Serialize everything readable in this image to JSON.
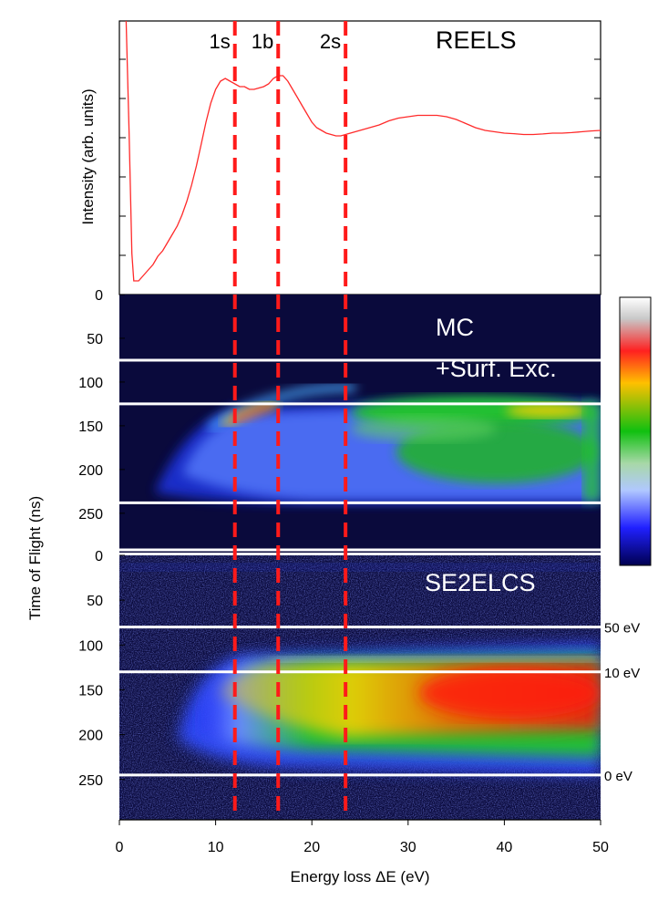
{
  "figure": {
    "x_axis_label": "Energy loss ΔE (eV)",
    "y_axis_label_top": "Intensity (arb. units)",
    "y_axis_label_bottom": "Time of Flight (ns)"
  },
  "chart_data": [
    {
      "type": "line",
      "title": "REELS",
      "xlabel": "Energy loss ΔE (eV)",
      "ylabel": "Intensity (arb. units)",
      "xlim": [
        0,
        50
      ],
      "ylim": [
        0,
        1
      ],
      "x_ticks": [
        "0",
        "10",
        "20",
        "30",
        "40",
        "50"
      ],
      "series": [
        {
          "name": "REELS",
          "color": "#ff2a2a",
          "x": [
            0.7,
            1.0,
            1.3,
            1.5,
            2,
            2.5,
            3,
            3.5,
            4,
            4.5,
            5,
            5.5,
            6,
            6.5,
            7,
            7.5,
            8,
            8.5,
            9,
            9.5,
            10,
            10.5,
            11,
            11.5,
            12,
            12.5,
            13,
            13.5,
            14,
            14.5,
            15,
            15.5,
            16,
            16.5,
            17,
            17.5,
            18,
            18.5,
            19,
            19.5,
            20,
            20.5,
            21,
            21.5,
            22,
            22.5,
            23,
            23.5,
            24,
            25,
            26,
            27,
            28,
            29,
            30,
            31,
            32,
            33,
            34,
            35,
            36,
            37,
            38,
            39,
            40,
            41,
            42,
            43,
            44,
            45,
            46,
            47,
            48,
            49,
            50
          ],
          "y": [
            1.0,
            0.6,
            0.15,
            0.05,
            0.05,
            0.07,
            0.09,
            0.11,
            0.14,
            0.16,
            0.19,
            0.22,
            0.25,
            0.29,
            0.34,
            0.4,
            0.47,
            0.55,
            0.63,
            0.7,
            0.75,
            0.78,
            0.79,
            0.78,
            0.77,
            0.76,
            0.76,
            0.75,
            0.75,
            0.755,
            0.76,
            0.77,
            0.79,
            0.8,
            0.8,
            0.78,
            0.75,
            0.72,
            0.69,
            0.66,
            0.63,
            0.61,
            0.6,
            0.59,
            0.585,
            0.58,
            0.58,
            0.585,
            0.59,
            0.6,
            0.61,
            0.62,
            0.635,
            0.645,
            0.65,
            0.655,
            0.655,
            0.655,
            0.65,
            0.64,
            0.625,
            0.61,
            0.6,
            0.595,
            0.59,
            0.588,
            0.585,
            0.585,
            0.587,
            0.59,
            0.59,
            0.592,
            0.595,
            0.598,
            0.6
          ]
        }
      ],
      "annotations": [
        "1s",
        "1b",
        "2s"
      ]
    },
    {
      "type": "heatmap",
      "title_lines": [
        "MC",
        "+Surf. Exc."
      ],
      "xlabel": "Energy loss ΔE (eV)",
      "ylabel": "Time of Flight (ns)",
      "xlim": [
        0,
        50
      ],
      "ylim": [
        295,
        0
      ],
      "y_ticks": [
        "0",
        "50",
        "100",
        "150",
        "200",
        "250"
      ]
    },
    {
      "type": "heatmap",
      "title": "SE2ELCS",
      "xlabel": "Energy loss ΔE (eV)",
      "ylabel": "Time of Flight (ns)",
      "xlim": [
        0,
        50
      ],
      "ylim": [
        295,
        0
      ],
      "y_ticks": [
        "0",
        "50",
        "100",
        "150",
        "200",
        "250"
      ],
      "energy_marker_labels": [
        "50 eV",
        "10 eV",
        "0 eV"
      ],
      "energy_marker_tof": [
        80,
        130,
        245
      ]
    }
  ],
  "mc_guides_tof": [
    75,
    125,
    238,
    295
  ],
  "vertical_markers": [
    {
      "label": "1s",
      "energy": 12
    },
    {
      "label": "1b",
      "energy": 16.5
    },
    {
      "label": "2s",
      "energy": 23.5
    }
  ],
  "colors": {
    "marker": "#ff1a1a",
    "curve": "#ff2a2a",
    "panel_bg": "#0a0a3c"
  },
  "colorbar": {
    "stops": [
      "#ffffff",
      "#d0d0d0",
      "#ff0000",
      "#ffb000",
      "#00c000",
      "#a0c8ff",
      "#1010ff",
      "#00005a"
    ]
  }
}
